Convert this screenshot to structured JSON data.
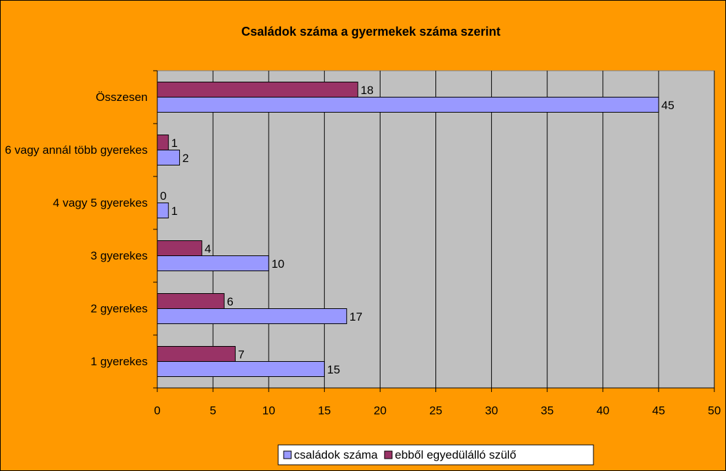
{
  "chart_data": {
    "type": "barh",
    "title": "Családok száma a gyermekek száma szerint",
    "categories": [
      "1 gyerekes",
      "2 gyerekes",
      "3 gyerekes",
      "4 vagy 5 gyerekes",
      "6 vagy annál több gyerekes",
      "Összesen"
    ],
    "series": [
      {
        "name": "családok száma",
        "color": "#9999FF",
        "values": [
          15,
          17,
          10,
          1,
          2,
          45
        ]
      },
      {
        "name": "ebből egyedülálló szülő",
        "color": "#993366",
        "values": [
          7,
          6,
          4,
          0,
          1,
          18
        ]
      }
    ],
    "xlim": [
      0,
      50
    ],
    "xticks": [
      0,
      5,
      10,
      15,
      20,
      25,
      30,
      35,
      40,
      45,
      50
    ],
    "grid": true,
    "legend": "bottom"
  }
}
